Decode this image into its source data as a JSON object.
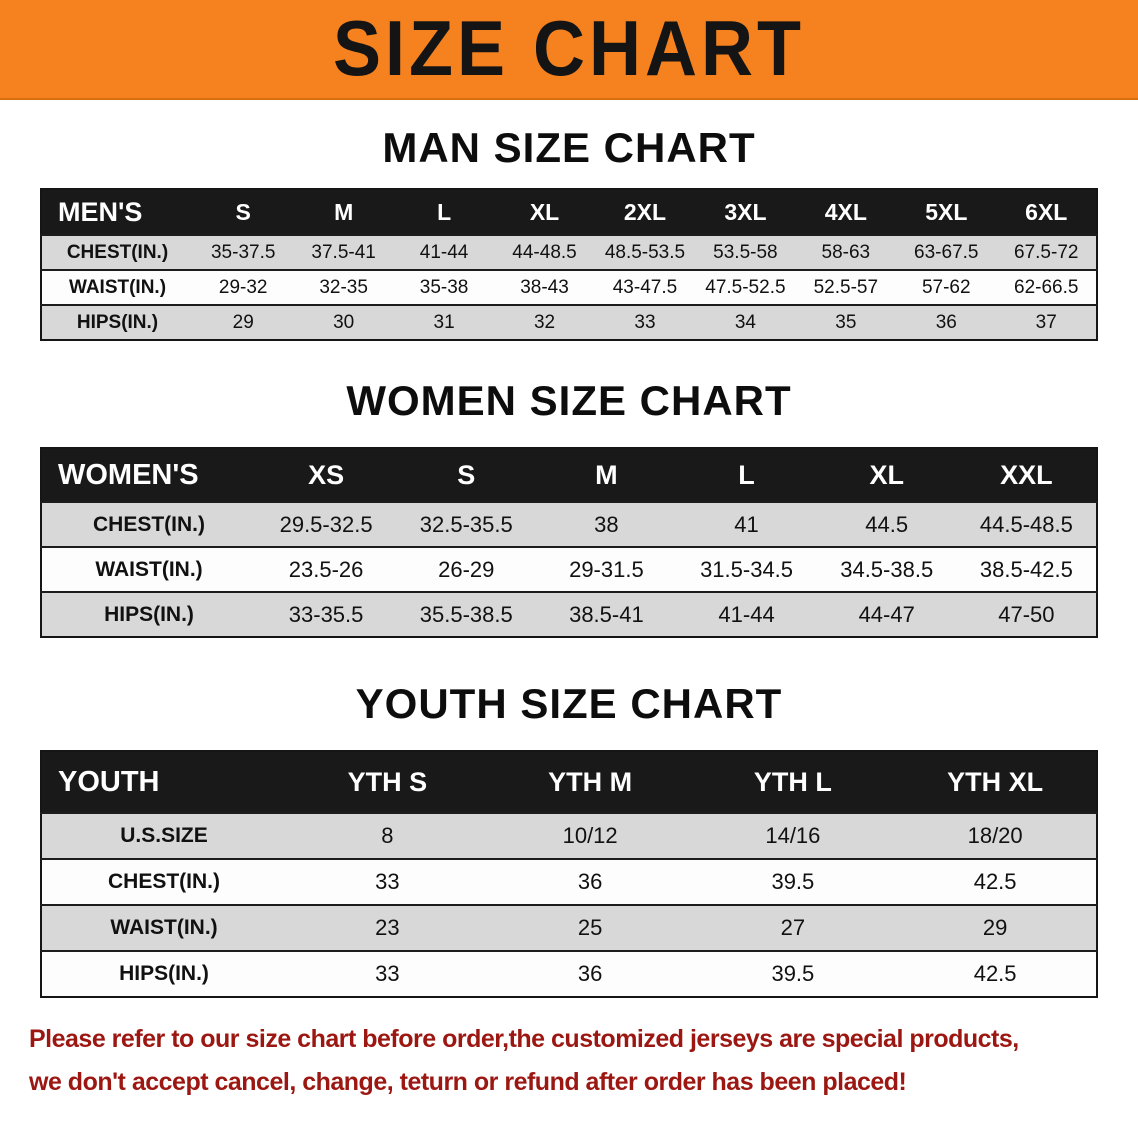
{
  "banner": {
    "title": "SIZE CHART"
  },
  "colors": {
    "banner_bg": "#f5821f",
    "table_header_bg": "#191919",
    "row_shade": "#d8d8d8",
    "footer_text": "#9c1712"
  },
  "man_section": {
    "title": "MAN SIZE CHART",
    "table": {
      "header": [
        "MEN'S",
        "S",
        "M",
        "L",
        "XL",
        "2XL",
        "3XL",
        "4XL",
        "5XL",
        "6XL"
      ],
      "rows": [
        [
          "CHEST(IN.)",
          "35-37.5",
          "37.5-41",
          "41-44",
          "44-48.5",
          "48.5-53.5",
          "53.5-58",
          "58-63",
          "63-67.5",
          "67.5-72"
        ],
        [
          "WAIST(IN.)",
          "29-32",
          "32-35",
          "35-38",
          "38-43",
          "43-47.5",
          "47.5-52.5",
          "52.5-57",
          "57-62",
          "62-66.5"
        ],
        [
          "HIPS(IN.)",
          "29",
          "30",
          "31",
          "32",
          "33",
          "34",
          "35",
          "36",
          "37"
        ]
      ]
    }
  },
  "women_section": {
    "title": "WOMEN SIZE CHART",
    "table": {
      "header": [
        "WOMEN'S",
        "XS",
        "S",
        "M",
        "L",
        "XL",
        "XXL"
      ],
      "rows": [
        [
          "CHEST(IN.)",
          "29.5-32.5",
          "32.5-35.5",
          "38",
          "41",
          "44.5",
          "44.5-48.5"
        ],
        [
          "WAIST(IN.)",
          "23.5-26",
          "26-29",
          "29-31.5",
          "31.5-34.5",
          "34.5-38.5",
          "38.5-42.5"
        ],
        [
          "HIPS(IN.)",
          "33-35.5",
          "35.5-38.5",
          "38.5-41",
          "41-44",
          "44-47",
          "47-50"
        ]
      ]
    }
  },
  "youth_section": {
    "title": "YOUTH SIZE CHART",
    "table": {
      "header": [
        "YOUTH",
        "YTH S",
        "YTH M",
        "YTH L",
        "YTH XL"
      ],
      "rows": [
        [
          "U.S.SIZE",
          "8",
          "10/12",
          "14/16",
          "18/20"
        ],
        [
          "CHEST(IN.)",
          "33",
          "36",
          "39.5",
          "42.5"
        ],
        [
          "WAIST(IN.)",
          "23",
          "25",
          "27",
          "29"
        ],
        [
          "HIPS(IN.)",
          "33",
          "36",
          "39.5",
          "42.5"
        ]
      ]
    }
  },
  "footer": {
    "line1": "Please refer to our size chart before order,the customized jerseys are special products,",
    "line2": "we don't accept cancel, change, teturn or refund after order has been placed!"
  }
}
